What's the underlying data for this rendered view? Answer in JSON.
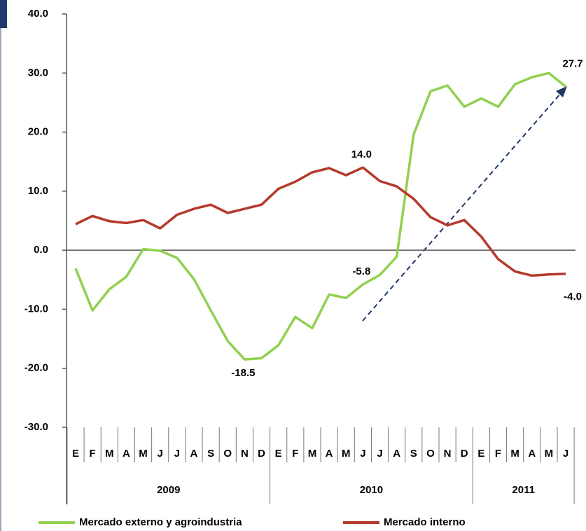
{
  "chart_data": {
    "type": "line",
    "categories": [
      "E",
      "F",
      "M",
      "A",
      "M",
      "J",
      "J",
      "A",
      "S",
      "O",
      "N",
      "D",
      "E",
      "F",
      "M",
      "A",
      "M",
      "J",
      "J",
      "A",
      "S",
      "O",
      "N",
      "D",
      "E",
      "F",
      "M",
      "A",
      "M",
      "J"
    ],
    "years": [
      "2009",
      "2010",
      "2011"
    ],
    "series": [
      {
        "name": "Mercado externo y agroindustria",
        "color": "#92d050",
        "values": [
          -3.1,
          -10.2,
          -6.6,
          -4.5,
          0.2,
          -0.1,
          -1.3,
          -4.9,
          -10.2,
          -15.4,
          -18.5,
          -18.3,
          -16.1,
          -11.3,
          -13.2,
          -7.5,
          -8.1,
          -5.8,
          -4.2,
          -1.1,
          19.6,
          26.9,
          27.9,
          24.3,
          25.7,
          24.3,
          28.1,
          29.3,
          30.0,
          27.7
        ],
        "value_labels": [
          null,
          null,
          null,
          null,
          null,
          null,
          null,
          null,
          null,
          null,
          "-18.5",
          null,
          null,
          null,
          null,
          null,
          null,
          "-5.8",
          null,
          null,
          null,
          null,
          null,
          null,
          null,
          null,
          null,
          null,
          null,
          "27.7"
        ]
      },
      {
        "name": "Mercado interno",
        "color": "#b5392c",
        "values": [
          4.4,
          5.8,
          4.9,
          4.6,
          5.1,
          3.7,
          6.0,
          7.0,
          7.7,
          6.3,
          7.0,
          7.7,
          10.4,
          11.6,
          13.2,
          13.9,
          12.7,
          14.0,
          11.7,
          10.8,
          8.7,
          5.6,
          4.2,
          5.1,
          2.3,
          -1.5,
          -3.6,
          -4.3,
          -4.1,
          -4.0
        ],
        "value_labels": [
          null,
          null,
          null,
          null,
          null,
          null,
          null,
          null,
          null,
          null,
          null,
          null,
          null,
          null,
          null,
          null,
          null,
          "14.0",
          null,
          null,
          null,
          null,
          null,
          null,
          null,
          null,
          null,
          null,
          null,
          "-4.0"
        ]
      }
    ],
    "ylim": [
      -30,
      40
    ],
    "yticks": [
      {
        "value": -30,
        "label": "-30.0"
      },
      {
        "value": -20,
        "label": "-20.0"
      },
      {
        "value": -10,
        "label": "-10.0"
      },
      {
        "value": 0,
        "label": "0.0"
      },
      {
        "value": 10,
        "label": "10.0"
      },
      {
        "value": 20,
        "label": "20.0"
      },
      {
        "value": 30,
        "label": "30.0"
      },
      {
        "value": 40,
        "label": "40.0"
      }
    ],
    "legend": "bottom"
  }
}
